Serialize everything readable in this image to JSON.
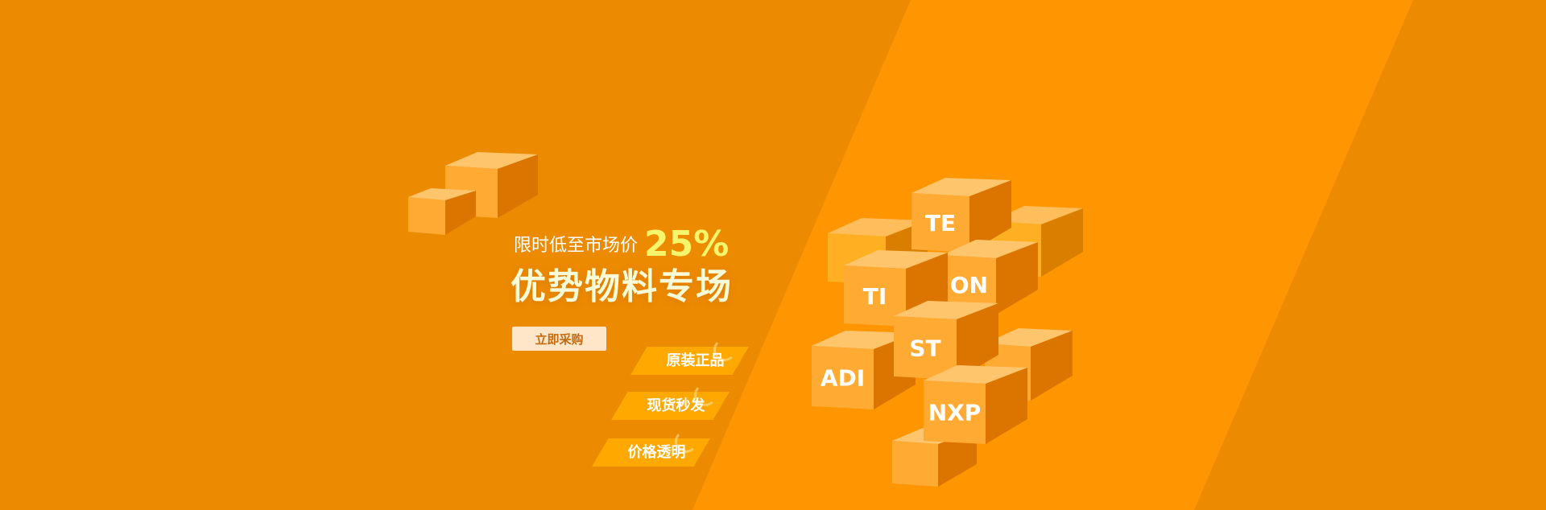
{
  "colors": {
    "background": "#EC8A00",
    "band": "#FF9500",
    "accent_yellow": "#F6F56B",
    "tag": "#FFA800",
    "button_bg": "#FFE6C8",
    "button_text": "#C46A10"
  },
  "banner": {
    "subtitle": "限时低至市场价",
    "percent": "25%",
    "title": "优势物料专场",
    "buy_button": "立即采购",
    "tags": [
      "原装正品",
      "现货秒发",
      "价格透明"
    ]
  },
  "cube_labels": [
    "TE",
    "ON",
    "TI",
    "ST",
    "ADI",
    "NXP"
  ]
}
